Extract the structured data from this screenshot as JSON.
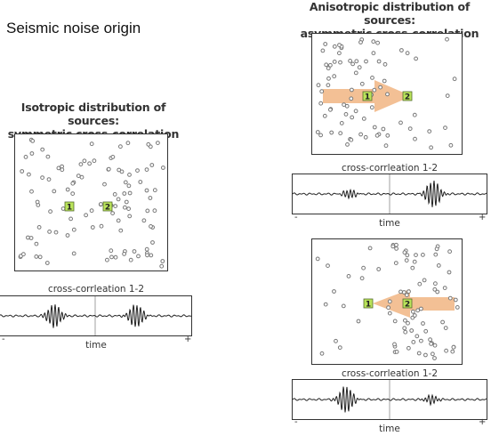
{
  "title": "Seismic noise origin",
  "panels": {
    "isotropic": {
      "heading_line1": "Isotropic distribution of sources:",
      "heading_line2": "symmetric cross-correlation",
      "station1": "1",
      "station2": "2",
      "xcorr_label": "cross-corrleation 1-2",
      "axis_label": "time",
      "minus": "-",
      "plus": "+"
    },
    "anisotropic_left": {
      "heading_line1": "Anisotropic distribution of sources:",
      "heading_line2": "asymmetric cross-correlation",
      "station1": "1",
      "station2": "2",
      "xcorr_label": "cross-corrleation 1-2",
      "axis_label": "time",
      "minus": "-",
      "plus": "+"
    },
    "anisotropic_right": {
      "station1": "1",
      "station2": "2",
      "xcorr_label": "cross-corrleation 1-2",
      "axis_label": "time",
      "minus": "-",
      "plus": "+"
    }
  },
  "colors": {
    "station_fill": "#b9e35a",
    "arrow_fill": "#f2b98a",
    "dot_stroke": "#777777"
  }
}
